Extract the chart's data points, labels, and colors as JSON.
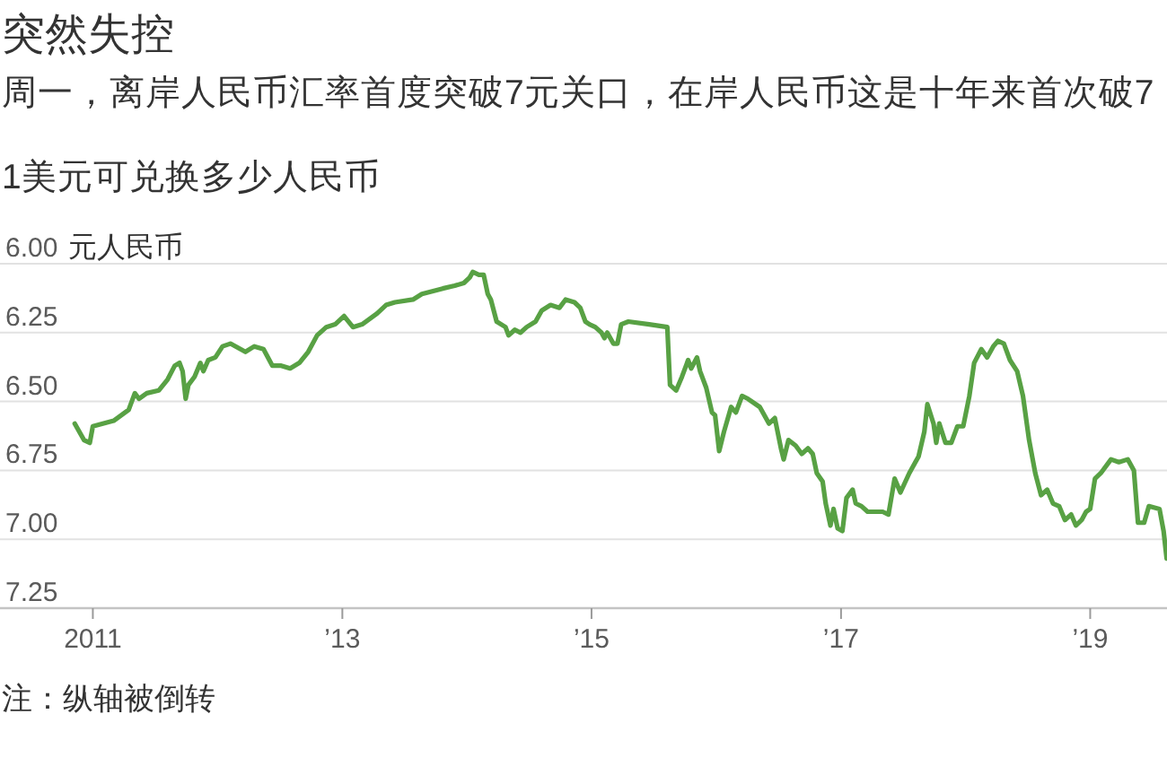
{
  "chart_data": {
    "type": "line",
    "title": "突然失控",
    "subtitle": "周一，离岸人民币汇率首度突破7元关口，在岸人民币这是十年来首次破7",
    "ylabel": "元人民币",
    "annotations": [
      "1美元可兑换多少人民币",
      "注：纵轴被倒转"
    ],
    "color": "#58a144",
    "grid": "y",
    "xlim": [
      "2010-04-04",
      "2019-08-14"
    ],
    "xticks": [
      "2011",
      {
        "value": "2013",
        "label": "’13"
      },
      {
        "value": "2015",
        "label": "’15"
      },
      {
        "value": "2017",
        "label": "’17"
      },
      {
        "value": "2019",
        "label": "’19"
      }
    ],
    "ylim": [
      7.25,
      6.0
    ],
    "yticks": [
      {
        "value": 6.0,
        "label": "6.00"
      },
      6.25,
      {
        "value": 6.5,
        "label": "6.50"
      },
      6.75,
      {
        "value": 7.0,
        "label": "7.00"
      },
      7.25
    ],
    "x": [
      "2010-11-09",
      "2010-12-06",
      "2010-12-23",
      "2011-01-01",
      "2011-03-03",
      "2011-04-16",
      "2011-05-04",
      "2011-05-16",
      "2011-06-08",
      "2011-07-13",
      "2011-08-08",
      "2011-08-29",
      "2011-09-12",
      "2011-09-21",
      "2011-09-30",
      "2011-10-08",
      "2011-10-26",
      "2011-11-12",
      "2011-11-21",
      "2011-12-05",
      "2011-12-26",
      "2012-01-16",
      "2012-02-08",
      "2012-03-23",
      "2012-04-18",
      "2012-05-15",
      "2012-06-10",
      "2012-07-06",
      "2012-08-01",
      "2012-08-28",
      "2012-09-23",
      "2012-10-19",
      "2012-11-15",
      "2012-12-11",
      "2013-01-06",
      "2013-02-01",
      "2013-02-28",
      "2013-04-13",
      "2013-05-09",
      "2013-06-04",
      "2013-07-27",
      "2013-08-22",
      "2013-10-22",
      "2013-11-26",
      "2013-12-23",
      "2014-01-09",
      "2014-01-18",
      "2014-02-05",
      "2014-02-19",
      "2014-03-03",
      "2014-03-12",
      "2014-03-29",
      "2014-04-24",
      "2014-05-03",
      "2014-05-21",
      "2014-06-07",
      "2014-06-25",
      "2014-07-21",
      "2014-08-08",
      "2014-09-03",
      "2014-09-29",
      "2014-10-17",
      "2014-11-12",
      "2014-11-29",
      "2014-12-14",
      "2014-12-26",
      "2015-01-12",
      "2015-01-30",
      "2015-02-08",
      "2015-02-16",
      "2015-03-06",
      "2015-03-18",
      "2015-03-29",
      "2015-04-19",
      "2015-06-19",
      "2015-08-11",
      "2015-08-19",
      "2015-09-06",
      "2015-09-23",
      "2015-10-11",
      "2015-10-20",
      "2015-11-06",
      "2015-11-15",
      "2015-12-03",
      "2015-12-20",
      "2015-12-29",
      "2016-01-10",
      "2016-01-24",
      "2016-02-14",
      "2016-02-28",
      "2016-03-17",
      "2016-04-03",
      "2016-05-08",
      "2016-06-04",
      "2016-06-21",
      "2016-07-09",
      "2016-07-17",
      "2016-07-31",
      "2016-08-21",
      "2016-09-08",
      "2016-09-26",
      "2016-10-10",
      "2016-10-22",
      "2016-11-08",
      "2016-11-17",
      "2016-12-01",
      "2016-12-10",
      "2016-12-22",
      "2017-01-05",
      "2017-01-17",
      "2017-02-04",
      "2017-02-13",
      "2017-03-02",
      "2017-03-20",
      "2017-05-03",
      "2017-05-20",
      "2017-06-07",
      "2017-06-24",
      "2017-07-20",
      "2017-08-16",
      "2017-09-02",
      "2017-09-11",
      "2017-09-29",
      "2017-10-07",
      "2017-10-16",
      "2017-11-03",
      "2017-11-20",
      "2017-12-08",
      "2017-12-25",
      "2018-01-12",
      "2018-01-26",
      "2018-02-16",
      "2018-03-05",
      "2018-03-23",
      "2018-04-06",
      "2018-04-23",
      "2018-05-11",
      "2018-06-01",
      "2018-06-18",
      "2018-07-06",
      "2018-07-24",
      "2018-08-10",
      "2018-08-28",
      "2018-09-14",
      "2018-10-02",
      "2018-10-19",
      "2018-11-06",
      "2018-11-20",
      "2018-12-07",
      "2018-12-20",
      "2019-01-01",
      "2019-01-15",
      "2019-02-01",
      "2019-03-03",
      "2019-03-26",
      "2019-04-21",
      "2019-05-09",
      "2019-05-21",
      "2019-06-08",
      "2019-06-22",
      "2019-07-23",
      "2019-08-04",
      "2019-08-13"
    ],
    "values": [
      6.58,
      6.64,
      6.65,
      6.59,
      6.57,
      6.53,
      6.47,
      6.49,
      6.47,
      6.46,
      6.42,
      6.37,
      6.36,
      6.39,
      6.49,
      6.44,
      6.41,
      6.36,
      6.39,
      6.35,
      6.34,
      6.3,
      6.29,
      6.32,
      6.3,
      6.31,
      6.37,
      6.37,
      6.38,
      6.36,
      6.32,
      6.26,
      6.23,
      6.22,
      6.19,
      6.23,
      6.22,
      6.18,
      6.15,
      6.14,
      6.13,
      6.11,
      6.09,
      6.08,
      6.07,
      6.05,
      6.03,
      6.04,
      6.04,
      6.11,
      6.13,
      6.21,
      6.23,
      6.26,
      6.24,
      6.25,
      6.23,
      6.21,
      6.17,
      6.15,
      6.16,
      6.13,
      6.14,
      6.16,
      6.21,
      6.22,
      6.23,
      6.25,
      6.27,
      6.25,
      6.29,
      6.29,
      6.22,
      6.21,
      6.22,
      6.23,
      6.44,
      6.46,
      6.41,
      6.35,
      6.38,
      6.34,
      6.39,
      6.45,
      6.54,
      6.55,
      6.68,
      6.61,
      6.52,
      6.54,
      6.48,
      6.49,
      6.52,
      6.58,
      6.56,
      6.67,
      6.71,
      6.64,
      6.66,
      6.69,
      6.67,
      6.69,
      6.76,
      6.79,
      6.87,
      6.95,
      6.89,
      6.96,
      6.97,
      6.85,
      6.82,
      6.87,
      6.88,
      6.9,
      6.9,
      6.91,
      6.78,
      6.83,
      6.76,
      6.7,
      6.61,
      6.51,
      6.58,
      6.65,
      6.58,
      6.65,
      6.65,
      6.59,
      6.59,
      6.48,
      6.36,
      6.31,
      6.34,
      6.3,
      6.28,
      6.29,
      6.35,
      6.39,
      6.48,
      6.64,
      6.76,
      6.84,
      6.82,
      6.87,
      6.88,
      6.93,
      6.91,
      6.95,
      6.93,
      6.9,
      6.89,
      6.78,
      6.76,
      6.71,
      6.72,
      6.71,
      6.75,
      6.94,
      6.94,
      6.88,
      6.89,
      6.97,
      7.07
    ]
  }
}
